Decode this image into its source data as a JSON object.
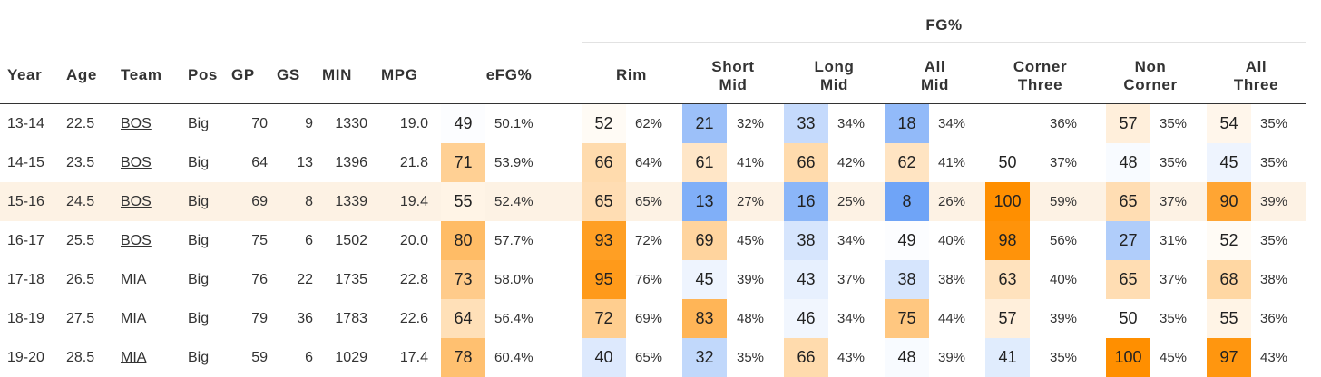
{
  "table": {
    "group_header": "FG%",
    "headers": {
      "year": "Year",
      "age": "Age",
      "team": "Team",
      "pos": "Pos",
      "gp": "GP",
      "gs": "GS",
      "min": "MIN",
      "mpg": "MPG",
      "efg": "eFG%",
      "rim": [
        "Rim"
      ],
      "short_mid": [
        "Short",
        "Mid"
      ],
      "long_mid": [
        "Long",
        "Mid"
      ],
      "all_mid": [
        "All",
        "Mid"
      ],
      "corner_three": [
        "Corner",
        "Three"
      ],
      "non_corner": [
        "Non",
        "Corner"
      ],
      "all_three": [
        "All",
        "Three"
      ]
    },
    "highlight_color": "#fdf2e4",
    "rows": [
      {
        "year": "13-14",
        "age": "22.5",
        "team": "BOS",
        "pos": "Big",
        "gp": "70",
        "gs": "9",
        "min": "1330",
        "mpg": "19.0",
        "efg": {
          "score": "49",
          "value": "50.1%"
        },
        "rim": {
          "score": "52",
          "value": "62%"
        },
        "short_mid": {
          "score": "21",
          "value": "32%"
        },
        "long_mid": {
          "score": "33",
          "value": "34%"
        },
        "all_mid": {
          "score": "18",
          "value": "34%"
        },
        "corner_three": {
          "score": "",
          "value": "36%"
        },
        "non_corner": {
          "score": "57",
          "value": "35%"
        },
        "all_three": {
          "score": "54",
          "value": "35%"
        }
      },
      {
        "year": "14-15",
        "age": "23.5",
        "team": "BOS",
        "pos": "Big",
        "gp": "64",
        "gs": "13",
        "min": "1396",
        "mpg": "21.8",
        "efg": {
          "score": "71",
          "value": "53.9%"
        },
        "rim": {
          "score": "66",
          "value": "64%"
        },
        "short_mid": {
          "score": "61",
          "value": "41%"
        },
        "long_mid": {
          "score": "66",
          "value": "42%"
        },
        "all_mid": {
          "score": "62",
          "value": "41%"
        },
        "corner_three": {
          "score": "50",
          "value": "37%"
        },
        "non_corner": {
          "score": "48",
          "value": "35%"
        },
        "all_three": {
          "score": "45",
          "value": "35%"
        }
      },
      {
        "year": "15-16",
        "age": "24.5",
        "team": "BOS",
        "pos": "Big",
        "gp": "69",
        "gs": "8",
        "min": "1339",
        "mpg": "19.4",
        "highlight": true,
        "efg": {
          "score": "55",
          "value": "52.4%"
        },
        "rim": {
          "score": "65",
          "value": "65%"
        },
        "short_mid": {
          "score": "13",
          "value": "27%"
        },
        "long_mid": {
          "score": "16",
          "value": "25%"
        },
        "all_mid": {
          "score": "8",
          "value": "26%"
        },
        "corner_three": {
          "score": "100",
          "value": "59%"
        },
        "non_corner": {
          "score": "65",
          "value": "37%"
        },
        "all_three": {
          "score": "90",
          "value": "39%"
        }
      },
      {
        "year": "16-17",
        "age": "25.5",
        "team": "BOS",
        "pos": "Big",
        "gp": "75",
        "gs": "6",
        "min": "1502",
        "mpg": "20.0",
        "efg": {
          "score": "80",
          "value": "57.7%"
        },
        "rim": {
          "score": "93",
          "value": "72%"
        },
        "short_mid": {
          "score": "69",
          "value": "45%"
        },
        "long_mid": {
          "score": "38",
          "value": "34%"
        },
        "all_mid": {
          "score": "49",
          "value": "40%"
        },
        "corner_three": {
          "score": "98",
          "value": "56%"
        },
        "non_corner": {
          "score": "27",
          "value": "31%"
        },
        "all_three": {
          "score": "52",
          "value": "35%"
        }
      },
      {
        "year": "17-18",
        "age": "26.5",
        "team": "MIA",
        "pos": "Big",
        "gp": "76",
        "gs": "22",
        "min": "1735",
        "mpg": "22.8",
        "efg": {
          "score": "73",
          "value": "58.0%"
        },
        "rim": {
          "score": "95",
          "value": "76%"
        },
        "short_mid": {
          "score": "45",
          "value": "39%"
        },
        "long_mid": {
          "score": "43",
          "value": "37%"
        },
        "all_mid": {
          "score": "38",
          "value": "38%"
        },
        "corner_three": {
          "score": "63",
          "value": "40%"
        },
        "non_corner": {
          "score": "65",
          "value": "37%"
        },
        "all_three": {
          "score": "68",
          "value": "38%"
        }
      },
      {
        "year": "18-19",
        "age": "27.5",
        "team": "MIA",
        "pos": "Big",
        "gp": "79",
        "gs": "36",
        "min": "1783",
        "mpg": "22.6",
        "efg": {
          "score": "64",
          "value": "56.4%"
        },
        "rim": {
          "score": "72",
          "value": "69%"
        },
        "short_mid": {
          "score": "83",
          "value": "48%"
        },
        "long_mid": {
          "score": "46",
          "value": "34%"
        },
        "all_mid": {
          "score": "75",
          "value": "44%"
        },
        "corner_three": {
          "score": "57",
          "value": "39%"
        },
        "non_corner": {
          "score": "50",
          "value": "35%"
        },
        "all_three": {
          "score": "55",
          "value": "36%"
        }
      },
      {
        "year": "19-20",
        "age": "28.5",
        "team": "MIA",
        "pos": "Big",
        "gp": "59",
        "gs": "6",
        "min": "1029",
        "mpg": "17.4",
        "efg": {
          "score": "78",
          "value": "60.4%"
        },
        "rim": {
          "score": "40",
          "value": "65%"
        },
        "short_mid": {
          "score": "32",
          "value": "35%"
        },
        "long_mid": {
          "score": "66",
          "value": "43%"
        },
        "all_mid": {
          "score": "48",
          "value": "39%"
        },
        "corner_three": {
          "score": "41",
          "value": "35%"
        },
        "non_corner": {
          "score": "100",
          "value": "45%"
        },
        "all_three": {
          "score": "97",
          "value": "43%"
        }
      }
    ]
  }
}
